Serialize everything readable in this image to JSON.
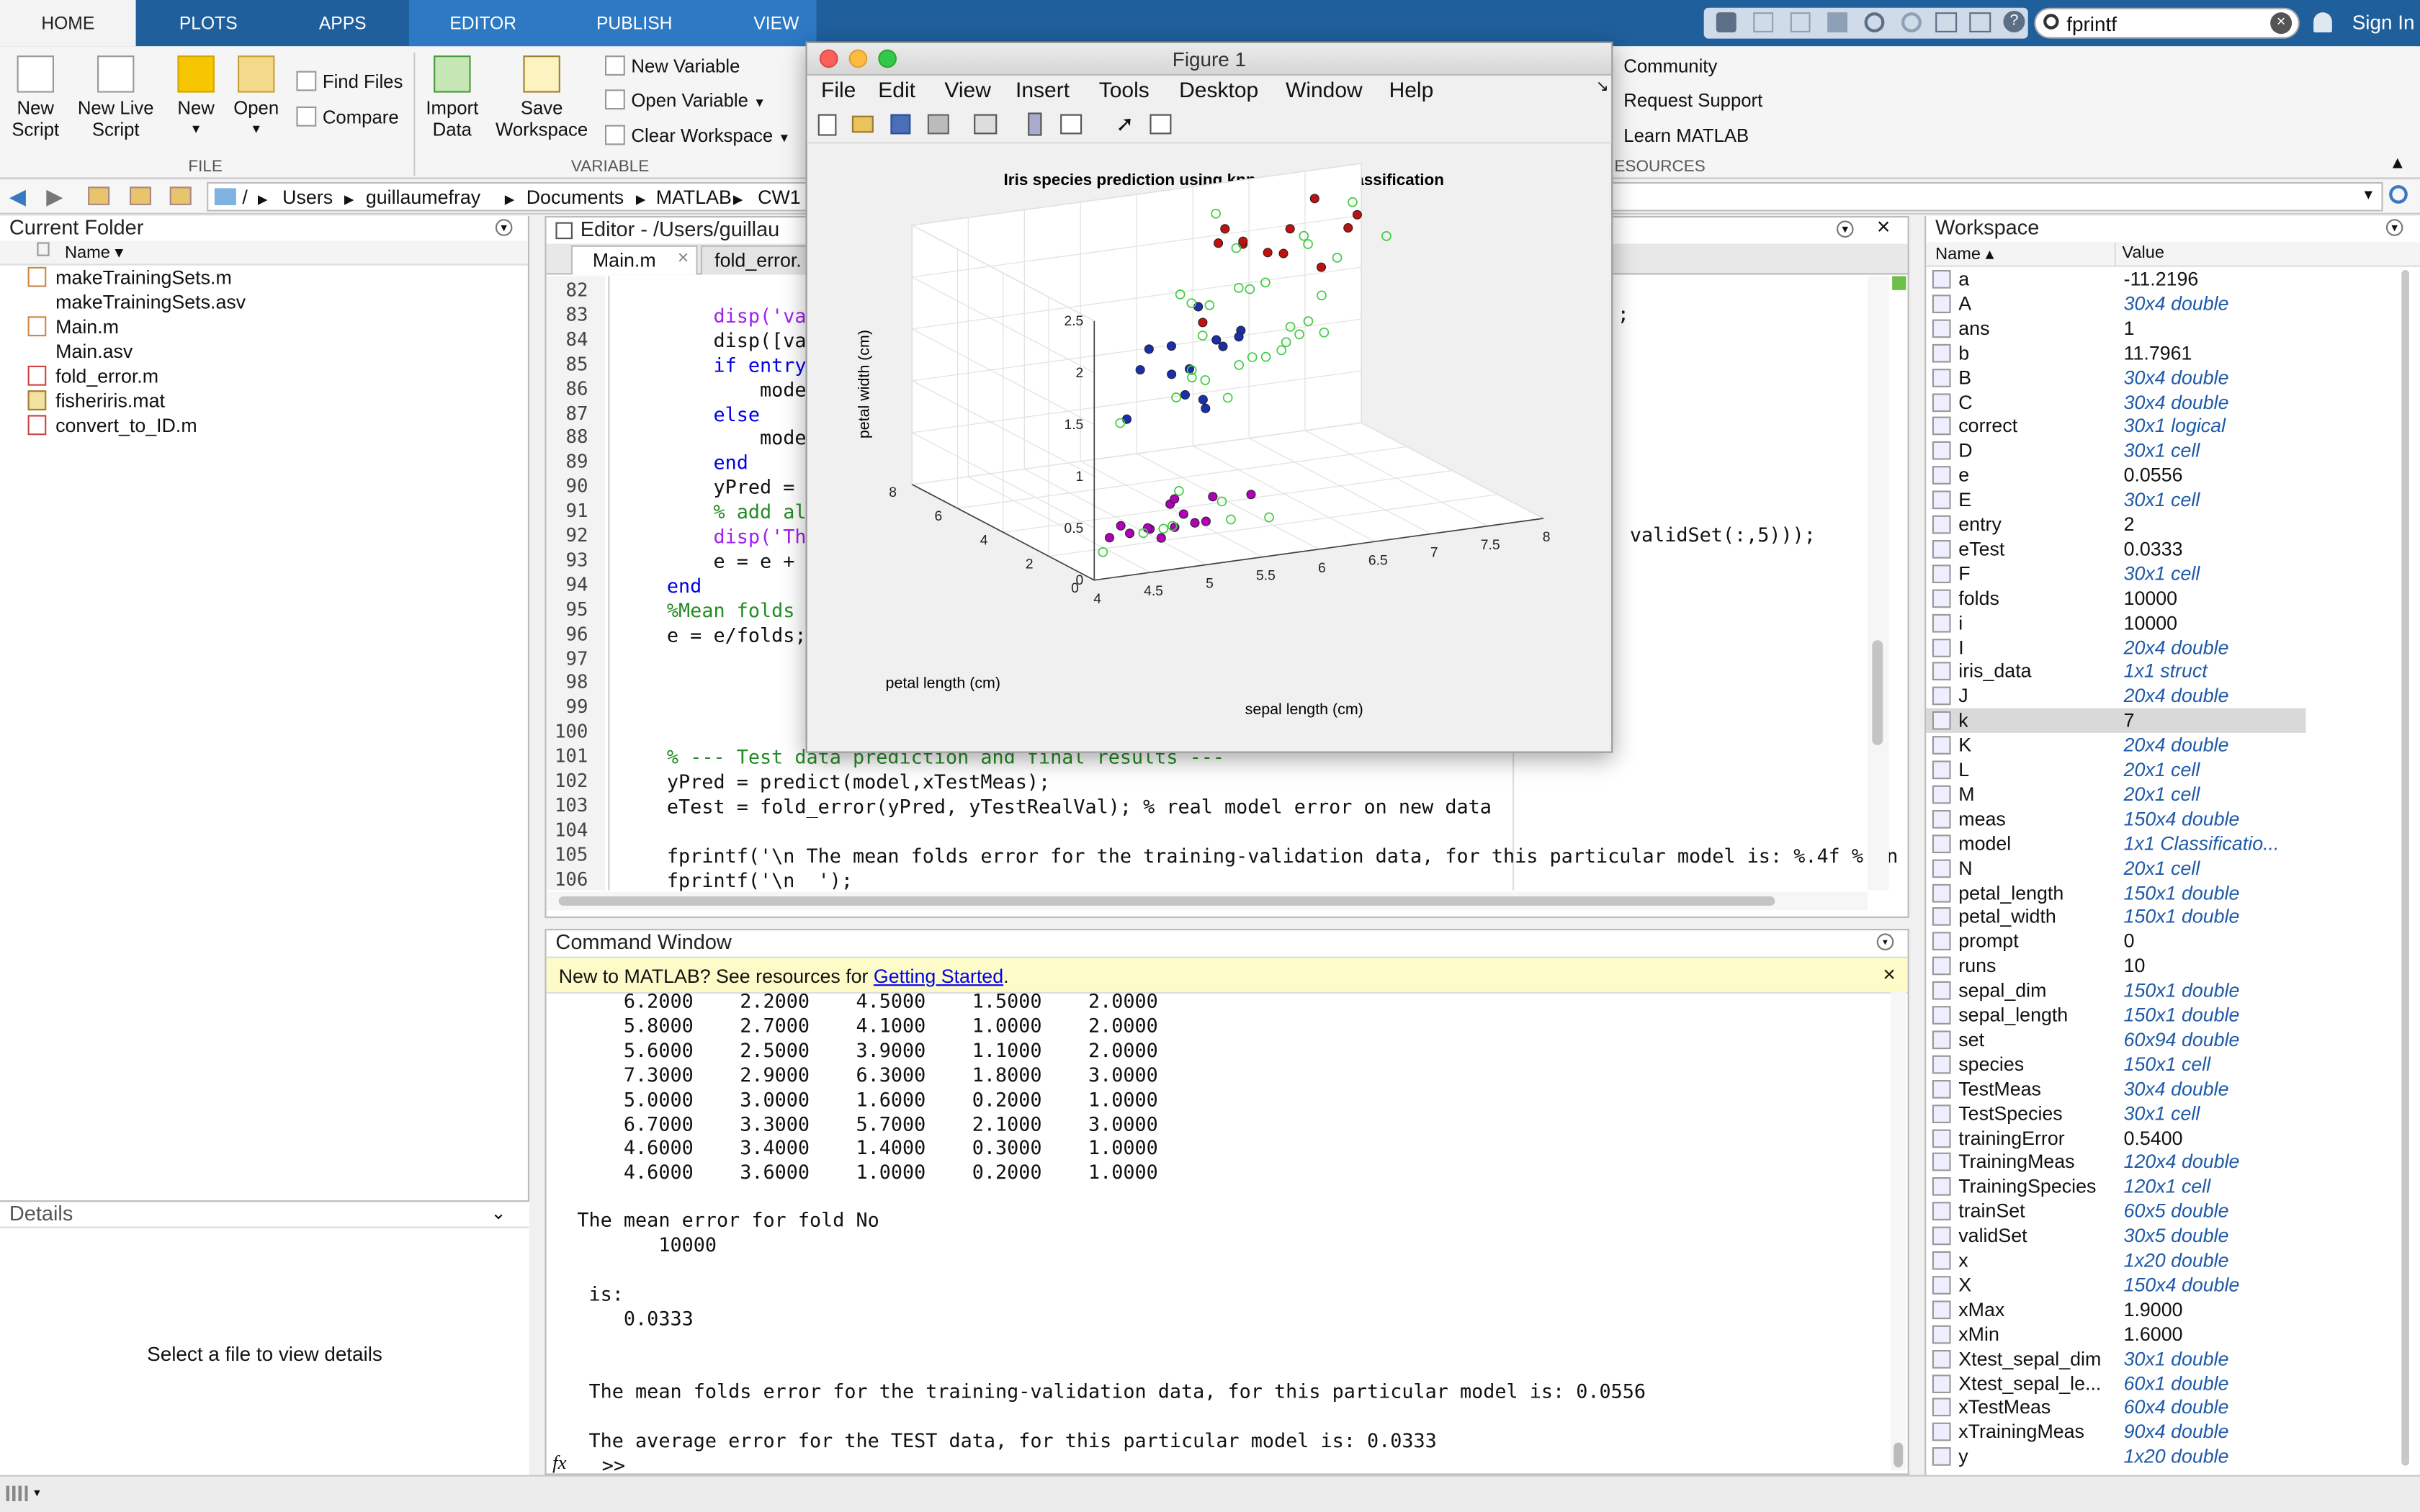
{
  "tabs": {
    "home": "HOME",
    "plots": "PLOTS",
    "apps": "APPS",
    "editor": "EDITOR",
    "publish": "PUBLISH",
    "view": "VIEW"
  },
  "search": {
    "value": "fprintf"
  },
  "sign_in": "Sign In",
  "toolstrip": {
    "new_script": "New Script",
    "new_live_script": "New Live Script",
    "new": "New",
    "open": "Open",
    "find_files": "Find Files",
    "compare": "Compare",
    "import_data": "Import Data",
    "save_workspace": "Save Workspace",
    "new_variable": "New Variable",
    "open_variable": "Open Variable",
    "clear_workspace": "Clear Workspace",
    "community": "Community",
    "request_support": "Request Support",
    "learn_matlab": "Learn MATLAB",
    "section_file": "FILE",
    "section_variable": "VARIABLE",
    "section_resources": "ESOURCES"
  },
  "path": [
    "/",
    "Users",
    "guillaumefray",
    "Documents",
    "MATLAB",
    "CW1"
  ],
  "current_folder": {
    "title": "Current Folder",
    "col_name": "Name",
    "files": [
      "makeTrainingSets.m",
      "makeTrainingSets.asv",
      "Main.m",
      "Main.asv",
      "fold_error.m",
      "fisheriris.mat",
      "convert_to_ID.m"
    ]
  },
  "details": {
    "title": "Details",
    "empty": "Select a file to view details"
  },
  "editor": {
    "title": "Editor - /Users/guillau",
    "tab_main": "Main.m",
    "tab_fold": "fold_error.",
    "lines": [
      {
        "n": "82",
        "t": ""
      },
      {
        "n": "83",
        "t": "        disp('vali",
        "c": "st"
      },
      {
        "n": "84",
        "t": "        disp([vali"
      },
      {
        "n": "85",
        "t": "        if entry =",
        "c": "kw"
      },
      {
        "n": "86",
        "t": "            model"
      },
      {
        "n": "87",
        "t": "        else",
        "c": "kw"
      },
      {
        "n": "88",
        "t": "            model"
      },
      {
        "n": "89",
        "t": "        end",
        "c": "kw"
      },
      {
        "n": "90",
        "t": "        yPred = pr"
      },
      {
        "n": "91",
        "t": "        % add all",
        "c": "cm"
      },
      {
        "n": "92",
        "t": "        disp('The ",
        "c": "st"
      },
      {
        "n": "93",
        "t": "        e = e + fo"
      },
      {
        "n": "94",
        "t": "    end",
        "c": "kw"
      },
      {
        "n": "95",
        "t": "    %Mean folds er",
        "c": "cm"
      },
      {
        "n": "96",
        "t": "    e = e/folds;"
      },
      {
        "n": "97",
        "t": ""
      },
      {
        "n": "98",
        "t": ""
      },
      {
        "n": "99",
        "t": ""
      },
      {
        "n": "100",
        "t": ""
      },
      {
        "n": "101",
        "t": "    % --- Test data prediction and final results ---",
        "c": "cm"
      },
      {
        "n": "102",
        "t": "    yPred = predict(model,xTestMeas);"
      },
      {
        "n": "103",
        "t": "    eTest = fold_error(yPred, yTestRealVal); % real model error on new data"
      },
      {
        "n": "104",
        "t": ""
      },
      {
        "n": "105",
        "t": "    fprintf('\\n The mean folds error for the training-validation data, for this particular model is: %.4f % \\n"
      },
      {
        "n": "106",
        "t": "    fprintf('\\n  ');"
      }
    ],
    "right_fragment_83": ";",
    "right_fragment_92": "validSet(:,5)));"
  },
  "command": {
    "title": "Command Window",
    "banner_text": "New to MATLAB? See resources for ",
    "banner_link": "Getting Started",
    "banner_end": ".",
    "rows": [
      "    6.2000    2.2000    4.5000    1.5000    2.0000",
      "    5.8000    2.7000    4.1000    1.0000    2.0000",
      "    5.6000    2.5000    3.9000    1.1000    2.0000",
      "    7.3000    2.9000    6.3000    1.8000    3.0000",
      "    5.0000    3.0000    1.6000    0.2000    1.0000",
      "    6.7000    3.3000    5.7000    2.1000    3.0000",
      "    4.6000    3.4000    1.4000    0.3000    1.0000",
      "    4.6000    3.6000    1.0000    0.2000    1.0000"
    ],
    "fold_line": "The mean error for fold No",
    "fold_no": "       10000",
    "is_line": " is:",
    "is_value": "    0.0333",
    "mean_line": " The mean folds error for the training-validation data, for this particular model is: 0.0556",
    "avg_line": " The average error for the TEST data, for this particular model is: 0.0333",
    "prompt": ">>",
    "fx": "fx"
  },
  "workspace": {
    "title": "Workspace",
    "col_name": "Name",
    "col_value": "Value",
    "vars": [
      {
        "name": "a",
        "value": "-11.2196"
      },
      {
        "name": "A",
        "value": "30x4 double",
        "i": 1
      },
      {
        "name": "ans",
        "value": "1"
      },
      {
        "name": "b",
        "value": "11.7961"
      },
      {
        "name": "B",
        "value": "30x4 double",
        "i": 1
      },
      {
        "name": "C",
        "value": "30x4 double",
        "i": 1
      },
      {
        "name": "correct",
        "value": "30x1 logical",
        "i": 1
      },
      {
        "name": "D",
        "value": "30x1 cell",
        "i": 1
      },
      {
        "name": "e",
        "value": "0.0556"
      },
      {
        "name": "E",
        "value": "30x1 cell",
        "i": 1
      },
      {
        "name": "entry",
        "value": "2"
      },
      {
        "name": "eTest",
        "value": "0.0333"
      },
      {
        "name": "F",
        "value": "30x1 cell",
        "i": 1
      },
      {
        "name": "folds",
        "value": "10000"
      },
      {
        "name": "i",
        "value": "10000"
      },
      {
        "name": "I",
        "value": "20x4 double",
        "i": 1
      },
      {
        "name": "iris_data",
        "value": "1x1 struct",
        "i": 1
      },
      {
        "name": "J",
        "value": "20x4 double",
        "i": 1
      },
      {
        "name": "k",
        "value": "7",
        "sel": 1
      },
      {
        "name": "K",
        "value": "20x4 double",
        "i": 1
      },
      {
        "name": "L",
        "value": "20x1 cell",
        "i": 1
      },
      {
        "name": "M",
        "value": "20x1 cell",
        "i": 1
      },
      {
        "name": "meas",
        "value": "150x4 double",
        "i": 1
      },
      {
        "name": "model",
        "value": "1x1 Classificatio...",
        "i": 1
      },
      {
        "name": "N",
        "value": "20x1 cell",
        "i": 1
      },
      {
        "name": "petal_length",
        "value": "150x1 double",
        "i": 1
      },
      {
        "name": "petal_width",
        "value": "150x1 double",
        "i": 1
      },
      {
        "name": "prompt",
        "value": "0"
      },
      {
        "name": "runs",
        "value": "10"
      },
      {
        "name": "sepal_dim",
        "value": "150x1 double",
        "i": 1
      },
      {
        "name": "sepal_length",
        "value": "150x1 double",
        "i": 1
      },
      {
        "name": "set",
        "value": "60x94 double",
        "i": 1
      },
      {
        "name": "species",
        "value": "150x1 cell",
        "i": 1
      },
      {
        "name": "TestMeas",
        "value": "30x4 double",
        "i": 1
      },
      {
        "name": "TestSpecies",
        "value": "30x1 cell",
        "i": 1
      },
      {
        "name": "trainingError",
        "value": "0.5400"
      },
      {
        "name": "TrainingMeas",
        "value": "120x4 double",
        "i": 1
      },
      {
        "name": "TrainingSpecies",
        "value": "120x1 cell",
        "i": 1
      },
      {
        "name": "trainSet",
        "value": "60x5 double",
        "i": 1
      },
      {
        "name": "validSet",
        "value": "30x5 double",
        "i": 1
      },
      {
        "name": "x",
        "value": "1x20 double",
        "i": 1
      },
      {
        "name": "X",
        "value": "150x4 double",
        "i": 1
      },
      {
        "name": "xMax",
        "value": "1.9000"
      },
      {
        "name": "xMin",
        "value": "1.6000"
      },
      {
        "name": "Xtest_sepal_dim",
        "value": "30x1 double",
        "i": 1
      },
      {
        "name": "Xtest_sepal_le...",
        "value": "60x1 double",
        "i": 1
      },
      {
        "name": "xTestMeas",
        "value": "60x4 double",
        "i": 1
      },
      {
        "name": "xTrainingMeas",
        "value": "90x4 double",
        "i": 1
      },
      {
        "name": "y",
        "value": "1x20 double",
        "i": 1
      }
    ]
  },
  "figure": {
    "window_title": "Figure 1",
    "menu": [
      "File",
      "Edit",
      "View",
      "Insert",
      "Tools",
      "Desktop",
      "Window",
      "Help"
    ]
  },
  "chart_data": {
    "type": "scatter",
    "title": "Iris species prediction using knn and linear classification",
    "xlabel": "sepal length (cm)",
    "ylabel": "petal length (cm)",
    "zlabel": "petal width (cm)",
    "x_ticks": [
      "4",
      "4.5",
      "5",
      "5.5",
      "6",
      "6.5",
      "7",
      "7.5",
      "8"
    ],
    "y_ticks": [
      "0",
      "2",
      "4",
      "6",
      "8"
    ],
    "z_ticks": [
      "0",
      "0.5",
      "1",
      "1.5",
      "2",
      "2.5"
    ],
    "xlim": [
      4,
      8
    ],
    "ylim": [
      0,
      8
    ],
    "zlim": [
      0,
      2.5
    ],
    "grid": true,
    "colors": {
      "setosa_pred": "#b000b8",
      "versicolor_pred": "#1a2fb0",
      "virginica_pred": "#c01010",
      "data": "#44cc44"
    },
    "series": [
      {
        "marker": "filled",
        "color": "setosa_pred",
        "points": [
          [
            4.8,
            1.5,
            0.2
          ],
          [
            5.0,
            1.4,
            0.2
          ],
          [
            5.1,
            1.5,
            0.3
          ],
          [
            4.6,
            1.4,
            0.2
          ],
          [
            5.4,
            1.7,
            0.4
          ],
          [
            4.9,
            1.5,
            0.1
          ],
          [
            5.2,
            1.5,
            0.2
          ],
          [
            5.0,
            1.6,
            0.4
          ],
          [
            4.4,
            1.3,
            0.2
          ],
          [
            5.7,
            1.5,
            0.4
          ],
          [
            4.8,
            1.6,
            0.2
          ],
          [
            5.1,
            1.9,
            0.4
          ],
          [
            5.3,
            1.5,
            0.2
          ],
          [
            4.5,
            1.3,
            0.3
          ]
        ]
      },
      {
        "marker": "filled",
        "color": "versicolor_pred",
        "points": [
          [
            5.5,
            4.0,
            1.3
          ],
          [
            5.7,
            4.2,
            1.3
          ],
          [
            6.0,
            4.5,
            1.5
          ],
          [
            5.6,
            3.9,
            1.1
          ],
          [
            5.8,
            4.1,
            1.0
          ],
          [
            6.1,
            4.7,
            1.4
          ],
          [
            5.9,
            4.8,
            1.8
          ],
          [
            6.3,
            4.9,
            1.5
          ],
          [
            5.2,
            3.9,
            1.4
          ],
          [
            5.6,
            4.5,
            1.5
          ],
          [
            5.0,
            3.5,
            1.0
          ],
          [
            6.2,
            4.5,
            1.5
          ],
          [
            5.4,
            4.5,
            1.5
          ],
          [
            5.7,
            3.5,
            1.0
          ]
        ]
      },
      {
        "marker": "filled",
        "color": "virginica_pred",
        "points": [
          [
            6.5,
            5.8,
            2.2
          ],
          [
            7.2,
            6.1,
            2.5
          ],
          [
            6.7,
            5.7,
            2.1
          ],
          [
            6.9,
            5.7,
            2.3
          ],
          [
            6.3,
            5.6,
            2.4
          ],
          [
            7.7,
            6.7,
            2.2
          ],
          [
            6.4,
            5.3,
            2.3
          ],
          [
            6.8,
            5.5,
            2.1
          ],
          [
            7.3,
            6.3,
            1.8
          ],
          [
            6.0,
            5.1,
            1.6
          ],
          [
            6.2,
            5.4,
            2.3
          ],
          [
            7.6,
            6.6,
            2.1
          ]
        ]
      },
      {
        "marker": "open",
        "color": "data",
        "points": [
          [
            5.0,
            1.5,
            0.2
          ],
          [
            4.7,
            1.3,
            0.2
          ],
          [
            5.4,
            1.3,
            0.4
          ],
          [
            5.8,
            1.2,
            0.2
          ],
          [
            5.1,
            1.7,
            0.5
          ],
          [
            4.3,
            1.1,
            0.1
          ],
          [
            5.5,
            1.4,
            0.2
          ],
          [
            4.9,
            1.4,
            0.2
          ],
          [
            6.0,
            4.0,
            1.0
          ],
          [
            6.6,
            4.4,
            1.4
          ],
          [
            6.7,
            4.7,
            1.5
          ],
          [
            5.5,
            3.8,
            1.1
          ],
          [
            6.1,
            4.0,
            1.3
          ],
          [
            6.4,
            4.3,
            1.3
          ],
          [
            5.7,
            4.1,
            1.3
          ],
          [
            6.9,
            4.9,
            1.5
          ],
          [
            5.6,
            3.6,
            1.3
          ],
          [
            6.8,
            4.8,
            1.4
          ],
          [
            4.9,
            3.3,
            1.0
          ],
          [
            6.3,
            4.4,
            1.3
          ],
          [
            7.0,
            4.7,
            1.4
          ],
          [
            6.6,
            4.6,
            1.3
          ],
          [
            5.8,
            4.0,
            1.2
          ],
          [
            7.1,
            5.9,
            2.1
          ],
          [
            6.3,
            6.0,
            2.5
          ],
          [
            7.9,
            6.4,
            2.0
          ],
          [
            6.5,
            5.5,
            1.8
          ],
          [
            7.7,
            6.9,
            2.3
          ],
          [
            6.4,
            5.6,
            2.2
          ],
          [
            7.4,
            6.1,
            1.9
          ],
          [
            6.0,
            4.8,
            1.8
          ],
          [
            6.9,
            5.1,
            2.3
          ],
          [
            5.8,
            5.1,
            1.9
          ],
          [
            6.1,
            5.6,
            1.4
          ],
          [
            6.7,
            5.8,
            1.8
          ],
          [
            7.2,
            5.8,
            1.6
          ],
          [
            6.3,
            5.0,
            1.9
          ],
          [
            5.9,
            5.1,
            1.8
          ]
        ]
      }
    ]
  }
}
